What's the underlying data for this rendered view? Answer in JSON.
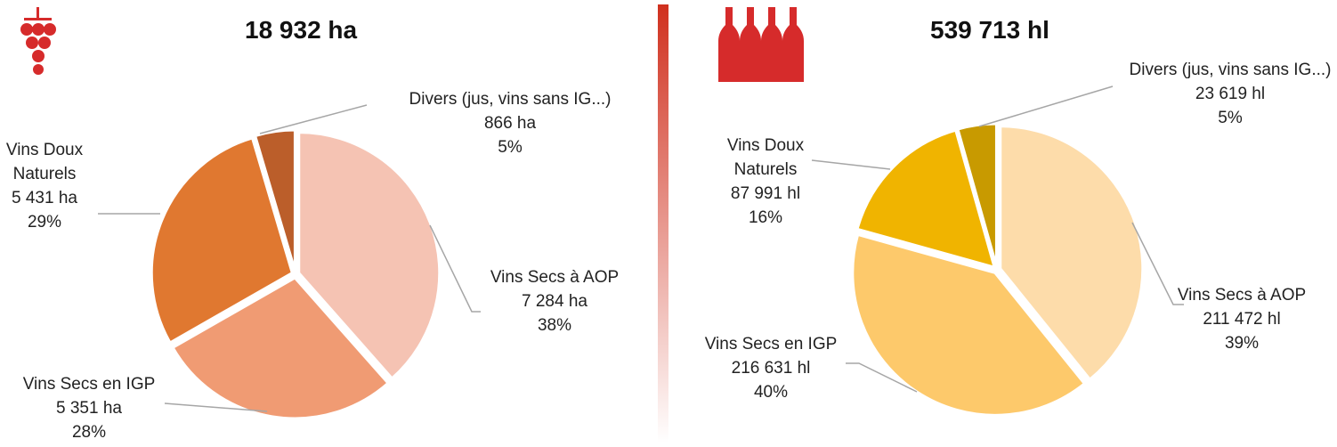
{
  "chart_data": [
    {
      "type": "pie",
      "title": "18 932 ha",
      "categories": [
        "Vins Secs à AOP",
        "Vins Secs en IGP",
        "Vins Doux Naturels",
        "Divers (jus, vins sans IG...)"
      ],
      "values": [
        7284,
        5351,
        5431,
        866
      ],
      "value_labels": [
        "7 284 ha",
        "5 351 ha",
        "5 431 ha",
        "866 ha"
      ],
      "percents": [
        38,
        28,
        29,
        5
      ],
      "percent_labels": [
        "38%",
        "28%",
        "29%",
        "5%"
      ],
      "colors": [
        "#f5c3b3",
        "#f09b73",
        "#e07830",
        "#bb5e2a"
      ]
    },
    {
      "type": "pie",
      "title": "539 713 hl",
      "categories": [
        "Vins Secs à AOP",
        "Vins Secs en IGP",
        "Vins Doux Naturels",
        "Divers (jus, vins sans IG...)"
      ],
      "values": [
        211472,
        216631,
        87991,
        23619
      ],
      "value_labels": [
        "211 472 hl",
        "216 631 hl",
        "87 991 hl",
        "23 619 hl"
      ],
      "percents": [
        39,
        40,
        16,
        5
      ],
      "percent_labels": [
        "39%",
        "40%",
        "16%",
        "5%"
      ],
      "colors": [
        "#fddcaa",
        "#fdc96b",
        "#f0b400",
        "#c89a00"
      ]
    }
  ]
}
